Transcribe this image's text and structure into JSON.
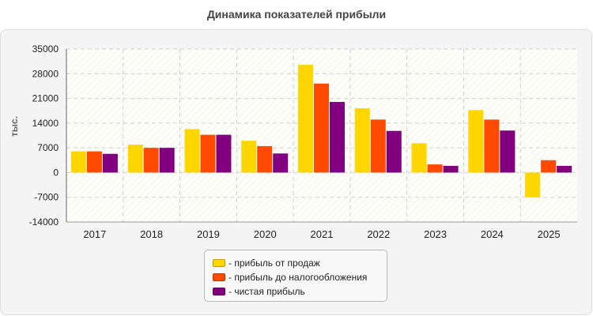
{
  "chart_data": {
    "type": "bar",
    "title": "Динамика показателей прибыли",
    "ylabel": "тыс.",
    "xlabel": "",
    "categories": [
      "2017",
      "2018",
      "2019",
      "2020",
      "2021",
      "2022",
      "2023",
      "2024",
      "2025"
    ],
    "ylim": [
      -14000,
      35000
    ],
    "yticks": [
      "35000",
      "28000",
      "21000",
      "14000",
      "7000",
      "0",
      "-7000",
      "-14000"
    ],
    "grid": true,
    "legend_position": "bottom",
    "series": [
      {
        "name": "- прибыль от продаж",
        "color": "#ffd600",
        "values": [
          6000,
          7900,
          12300,
          9000,
          30500,
          18200,
          8300,
          17700,
          -7000
        ]
      },
      {
        "name": "- прибыль до налогообложения",
        "color": "#ff4a00",
        "values": [
          6000,
          7000,
          10700,
          7500,
          25200,
          15000,
          2300,
          15000,
          3500
        ]
      },
      {
        "name": "- чистая прибыль",
        "color": "#800080",
        "values": [
          5300,
          7000,
          10700,
          5400,
          20000,
          11800,
          1900,
          11900,
          1900
        ]
      }
    ]
  }
}
